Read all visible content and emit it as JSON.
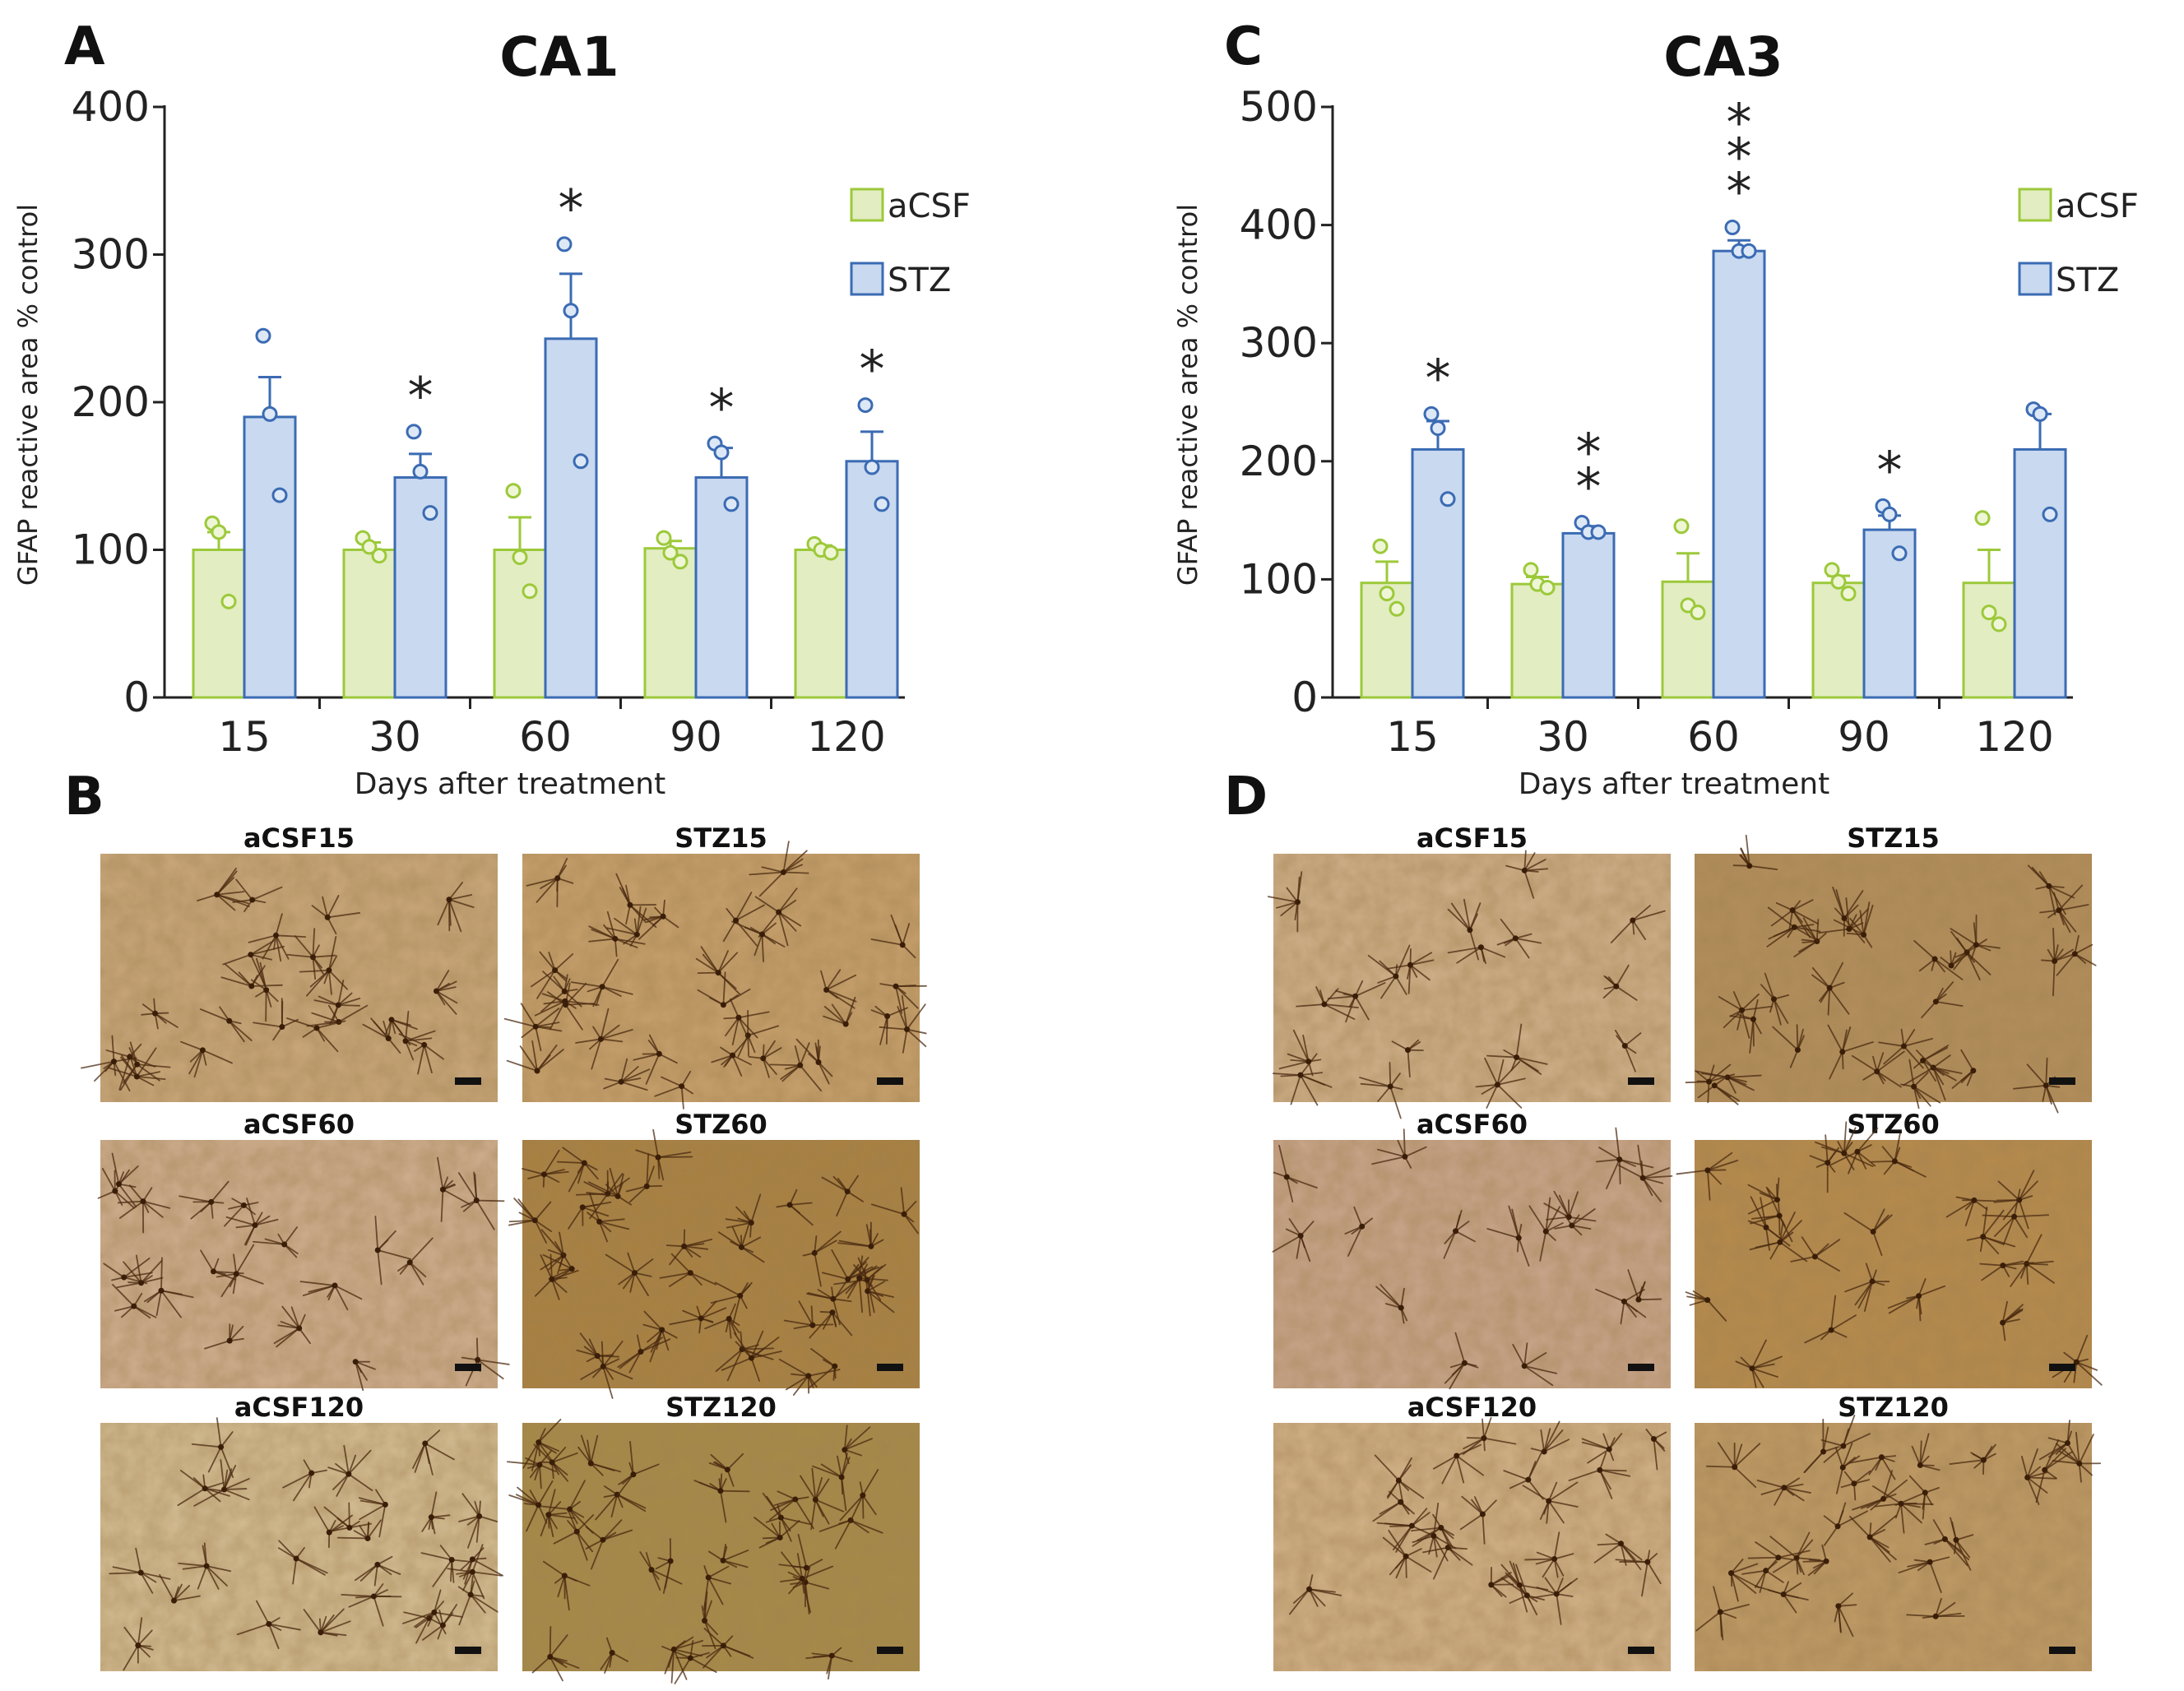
{
  "panels": {
    "a": {
      "letter": "A"
    },
    "b": {
      "letter": "B"
    },
    "c": {
      "letter": "C"
    },
    "d": {
      "letter": "D"
    }
  },
  "colors": {
    "acsf_fill": "#e2edc2",
    "acsf_stroke": "#9cc93a",
    "stz_fill": "#c8d9f0",
    "stz_stroke": "#3b6bb3",
    "dot_acsf_fill": "#eef6d6",
    "dot_stz_fill": "#dde8f7",
    "axis": "#222222"
  },
  "chart_data": [
    {
      "id": "ca1",
      "type": "bar",
      "title": "CA1",
      "xlabel": "Days after treatment",
      "ylabel": "GFAP reactive area % control",
      "ylim": [
        0,
        400
      ],
      "yticks": [
        0,
        100,
        200,
        300,
        400
      ],
      "categories": [
        "15",
        "30",
        "60",
        "90",
        "120"
      ],
      "legend": {
        "position": "top-right",
        "entries": [
          "aCSF",
          "STZ"
        ]
      },
      "series": [
        {
          "name": "aCSF",
          "values": [
            100,
            100,
            100,
            101,
            100
          ],
          "errors": [
            12,
            5,
            22,
            5,
            3
          ],
          "points": [
            [
              118,
              112,
              65
            ],
            [
              108,
              102,
              96
            ],
            [
              140,
              95,
              72
            ],
            [
              108,
              98,
              92
            ],
            [
              104,
              100,
              98
            ]
          ]
        },
        {
          "name": "STZ",
          "values": [
            190,
            149,
            243,
            149,
            160
          ],
          "errors": [
            27,
            16,
            44,
            20,
            20
          ],
          "points": [
            [
              245,
              192,
              137
            ],
            [
              180,
              153,
              125
            ],
            [
              307,
              262,
              160
            ],
            [
              172,
              166,
              131
            ],
            [
              198,
              156,
              131
            ]
          ]
        }
      ],
      "annotations": [
        {
          "category": "30",
          "series": "STZ",
          "label": "*"
        },
        {
          "category": "60",
          "series": "STZ",
          "label": "*"
        },
        {
          "category": "90",
          "series": "STZ",
          "label": "*"
        },
        {
          "category": "120",
          "series": "STZ",
          "label": "*"
        }
      ]
    },
    {
      "id": "ca3",
      "type": "bar",
      "title": "CA3",
      "xlabel": "Days after treatment",
      "ylabel": "GFAP reactive area % control",
      "ylim": [
        0,
        500
      ],
      "yticks": [
        0,
        100,
        200,
        300,
        400,
        500
      ],
      "categories": [
        "15",
        "30",
        "60",
        "90",
        "120"
      ],
      "legend": {
        "position": "top-right",
        "entries": [
          "aCSF",
          "STZ"
        ]
      },
      "series": [
        {
          "name": "aCSF",
          "values": [
            97,
            96,
            98,
            97,
            97
          ],
          "errors": [
            18,
            6,
            24,
            6,
            28
          ],
          "points": [
            [
              128,
              88,
              75
            ],
            [
              108,
              96,
              93
            ],
            [
              145,
              78,
              72
            ],
            [
              108,
              98,
              88
            ],
            [
              152,
              72,
              62
            ]
          ]
        },
        {
          "name": "STZ",
          "values": [
            210,
            139,
            378,
            142,
            210
          ],
          "errors": [
            24,
            6,
            9,
            12,
            30
          ],
          "points": [
            [
              240,
              228,
              168
            ],
            [
              148,
              140,
              140
            ],
            [
              398,
              378,
              378
            ],
            [
              162,
              155,
              122
            ],
            [
              244,
              240,
              155
            ]
          ]
        }
      ],
      "annotations": [
        {
          "category": "15",
          "series": "STZ",
          "label": "*"
        },
        {
          "category": "30",
          "series": "STZ",
          "label": "**"
        },
        {
          "category": "60",
          "series": "STZ",
          "label": "***"
        },
        {
          "category": "90",
          "series": "STZ",
          "label": "*"
        }
      ]
    }
  ],
  "micrographs": {
    "ca1": [
      {
        "title": "aCSF15",
        "tone": "#c9a77b",
        "cells": 26
      },
      {
        "title": "STZ15",
        "tone": "#c7a06c",
        "cells": 34
      },
      {
        "title": "aCSF60",
        "tone": "#cfae90",
        "cells": 22
      },
      {
        "title": "STZ60",
        "tone": "#a88040",
        "cells": 40
      },
      {
        "title": "aCSF120",
        "tone": "#d4bd94",
        "cells": 28
      },
      {
        "title": "STZ120",
        "tone": "#a58a48",
        "cells": 36
      }
    ],
    "ca3": [
      {
        "title": "aCSF15",
        "tone": "#cfb08a",
        "cells": 18
      },
      {
        "title": "STZ15",
        "tone": "#b38e5c",
        "cells": 32
      },
      {
        "title": "aCSF60",
        "tone": "#c9a58c",
        "cells": 16
      },
      {
        "title": "STZ60",
        "tone": "#b68a4c",
        "cells": 24
      },
      {
        "title": "aCSF120",
        "tone": "#d2b188",
        "cells": 24
      },
      {
        "title": "STZ120",
        "tone": "#bf9a66",
        "cells": 30
      }
    ]
  }
}
